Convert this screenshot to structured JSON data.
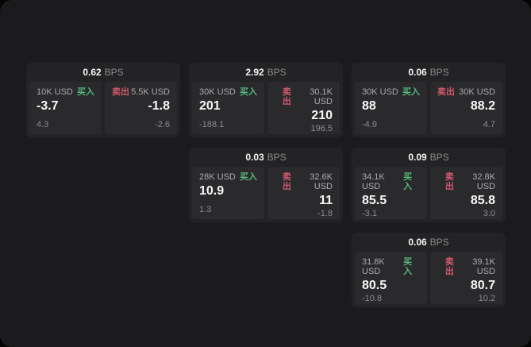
{
  "labels": {
    "bps_unit": "BPS",
    "buy": "买入",
    "sell": "卖出"
  },
  "colors": {
    "panel_bg": "#1b1b1d",
    "card_bg": "#232325",
    "side_bg": "#2a2a2c",
    "buy_green": "#55b87e",
    "sell_red": "#d0596c"
  },
  "cards": [
    {
      "bps": "0.62",
      "buy": {
        "size": "10K USD",
        "price": "-3.7",
        "delta": "4.3"
      },
      "sell": {
        "size": "5.5K USD",
        "price": "-1.8",
        "delta": "-2.6"
      }
    },
    {
      "bps": "2.92",
      "buy": {
        "size": "30K USD",
        "price": "201",
        "delta": "-188.1"
      },
      "sell": {
        "size": "30.1K USD",
        "price": "210",
        "delta": "196.5"
      }
    },
    {
      "bps": "0.06",
      "buy": {
        "size": "30K USD",
        "price": "88",
        "delta": "-4.9"
      },
      "sell": {
        "size": "30K USD",
        "price": "88.2",
        "delta": "4.7"
      }
    },
    {
      "bps": "0.03",
      "buy": {
        "size": "28K USD",
        "price": "10.9",
        "delta": "1.3"
      },
      "sell": {
        "size": "32.6K USD",
        "price": "11",
        "delta": "-1.8"
      }
    },
    {
      "bps": "0.09",
      "buy": {
        "size": "34.1K USD",
        "price": "85.5",
        "delta": "-3.1"
      },
      "sell": {
        "size": "32.8K USD",
        "price": "85.8",
        "delta": "3.0"
      }
    },
    {
      "bps": "0.06",
      "buy": {
        "size": "31.8K USD",
        "price": "80.5",
        "delta": "-10.8"
      },
      "sell": {
        "size": "39.1K USD",
        "price": "80.7",
        "delta": "10.2"
      }
    }
  ]
}
